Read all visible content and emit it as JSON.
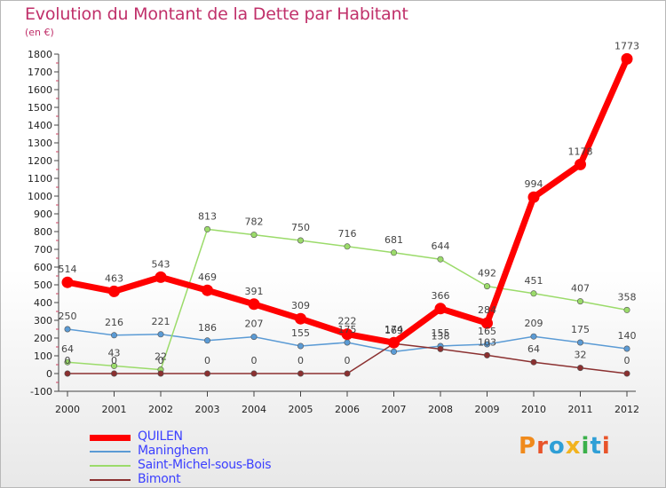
{
  "header": {
    "title": "Evolution du Montant de la Dette par Habitant",
    "unit": "(en €)"
  },
  "logo": {
    "text": "Proxiti",
    "colors": [
      "#f08a1c",
      "#e8542a",
      "#2f9fd6",
      "#f2b31e",
      "#3ab04a",
      "#2f9fd6",
      "#e8542a"
    ]
  },
  "chart_data": {
    "type": "line",
    "title": "Evolution du Montant de la Dette par Habitant",
    "subtitle": "(en €)",
    "xlabel": "",
    "ylabel": "",
    "x": [
      "2000",
      "2001",
      "2002",
      "2003",
      "2004",
      "2005",
      "2006",
      "2007",
      "2008",
      "2009",
      "2010",
      "2011",
      "2012"
    ],
    "yticks": [
      -100,
      0,
      100,
      200,
      300,
      400,
      500,
      600,
      700,
      800,
      900,
      1000,
      1100,
      1200,
      1300,
      1400,
      1500,
      1600,
      1700,
      1800
    ],
    "ylim": [
      -100,
      1800
    ],
    "grid": false,
    "legend_position": "bottom-left",
    "series": [
      {
        "name": "Maninghem",
        "color": "#5b9bd5",
        "values": [
          250,
          216,
          221,
          186,
          207,
          155,
          175,
          123,
          155,
          165,
          209,
          175,
          140
        ],
        "labels": [
          "250",
          "216",
          "221",
          "186",
          "207",
          "155",
          "175",
          "",
          "155",
          "165",
          "209",
          "175",
          "140"
        ]
      },
      {
        "name": "Saint-Michel-sous-Bois",
        "color": "#9bdb6a",
        "values": [
          64,
          43,
          22,
          813,
          782,
          750,
          716,
          681,
          644,
          492,
          451,
          407,
          358
        ],
        "labels": [
          "64",
          "43",
          "22",
          "813",
          "782",
          "750",
          "716",
          "681",
          "644",
          "492",
          "451",
          "407",
          "358"
        ]
      },
      {
        "name": "Bimont",
        "color": "#8b3030",
        "values": [
          0,
          0,
          0,
          0,
          0,
          0,
          0,
          169,
          138,
          103,
          64,
          32,
          0
        ],
        "labels": [
          "0",
          "0",
          "0",
          "0",
          "0",
          "0",
          "0",
          "169",
          "138",
          "103",
          "64",
          "32",
          "0"
        ]
      },
      {
        "name": "QUILEN",
        "color": "#ff0000",
        "values": [
          514,
          463,
          543,
          469,
          391,
          309,
          222,
          174,
          366,
          284,
          994,
          1178,
          1773
        ],
        "labels": [
          "514",
          "463",
          "543",
          "469",
          "391",
          "309",
          "222",
          "174",
          "366",
          "284",
          "994",
          "1178",
          "1773"
        ]
      }
    ],
    "legend_order": [
      "QUILEN",
      "Maninghem",
      "Saint-Michel-sous-Bois",
      "Bimont"
    ]
  }
}
